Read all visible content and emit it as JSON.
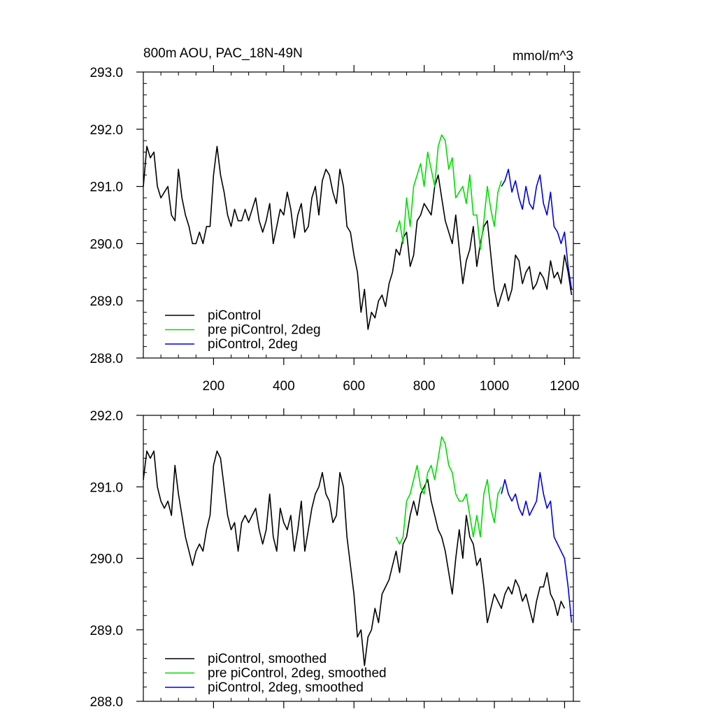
{
  "chart_data": [
    {
      "type": "line",
      "title": "800m AOU, PAC_18N-49N",
      "units": "mmol/m^3",
      "xlim": [
        0,
        1225
      ],
      "ylim": [
        288.0,
        293.0
      ],
      "xticks": [
        200,
        400,
        600,
        800,
        1000,
        1200
      ],
      "xtick_labels": [
        "200",
        "400",
        "600",
        "800",
        "1000",
        "1200"
      ],
      "yticks": [
        288.0,
        289.0,
        290.0,
        291.0,
        292.0,
        293.0
      ],
      "ytick_labels": [
        "288.0",
        "289.0",
        "290.0",
        "291.0",
        "292.0",
        "293.0"
      ],
      "grid": false,
      "legend_position": "bottom-left",
      "series": [
        {
          "name": "piControl",
          "color": "#000000",
          "x": [
            0,
            10,
            20,
            30,
            40,
            50,
            60,
            70,
            80,
            90,
            100,
            110,
            120,
            130,
            140,
            150,
            160,
            170,
            180,
            190,
            200,
            210,
            220,
            230,
            240,
            250,
            260,
            270,
            280,
            290,
            300,
            310,
            320,
            330,
            340,
            350,
            360,
            370,
            380,
            390,
            400,
            410,
            420,
            430,
            440,
            450,
            460,
            470,
            480,
            490,
            500,
            510,
            520,
            530,
            540,
            550,
            560,
            570,
            580,
            590,
            600,
            610,
            620,
            630,
            640,
            650,
            660,
            670,
            680,
            690,
            700,
            710,
            720,
            730,
            740,
            750,
            760,
            770,
            780,
            790,
            800,
            810,
            820,
            830,
            840,
            850,
            860,
            870,
            880,
            890,
            900,
            910,
            920,
            930,
            940,
            950,
            960,
            970,
            980,
            990,
            1000,
            1010,
            1020,
            1030,
            1040,
            1050,
            1060,
            1070,
            1080,
            1090,
            1100,
            1110,
            1120,
            1130,
            1140,
            1150,
            1160,
            1170,
            1180,
            1190,
            1200,
            1210,
            1220
          ],
          "y": [
            291.0,
            291.7,
            291.5,
            291.6,
            291.0,
            290.8,
            290.9,
            291.0,
            290.5,
            290.4,
            291.3,
            290.8,
            290.5,
            290.3,
            290.0,
            290.0,
            290.2,
            290.0,
            290.3,
            290.3,
            291.2,
            291.7,
            291.2,
            290.9,
            290.5,
            290.3,
            290.6,
            290.4,
            290.4,
            290.6,
            290.4,
            290.6,
            290.8,
            290.4,
            290.2,
            290.4,
            290.7,
            290.0,
            290.3,
            290.6,
            290.5,
            290.9,
            290.6,
            290.1,
            290.5,
            290.7,
            290.2,
            290.3,
            290.8,
            291.0,
            290.5,
            291.1,
            291.3,
            291.2,
            290.9,
            290.7,
            291.3,
            291.0,
            290.3,
            290.2,
            289.8,
            289.5,
            288.8,
            289.2,
            288.5,
            288.8,
            288.7,
            289.0,
            289.1,
            288.9,
            289.3,
            289.5,
            289.9,
            289.8,
            290.1,
            290.2,
            289.6,
            289.8,
            290.4,
            290.5,
            290.7,
            290.6,
            290.5,
            291.0,
            291.2,
            290.8,
            290.4,
            290.2,
            290.0,
            290.5,
            289.9,
            289.3,
            289.7,
            289.9,
            290.3,
            289.6,
            290.0,
            290.3,
            290.4,
            289.8,
            289.2,
            288.9,
            289.1,
            289.3,
            289.0,
            289.2,
            289.8,
            289.7,
            289.3,
            289.5,
            289.6,
            289.2,
            289.3,
            289.5,
            289.4,
            289.2,
            289.7,
            289.4,
            289.5,
            289.3,
            289.8,
            289.5,
            289.1
          ]
        },
        {
          "name": "pre piControl, 2deg",
          "color": "#00dd00",
          "x": [
            720,
            730,
            740,
            750,
            760,
            770,
            780,
            790,
            800,
            810,
            820,
            830,
            840,
            850,
            860,
            870,
            880,
            890,
            900,
            910,
            920,
            930,
            940,
            950,
            960,
            970,
            980,
            990,
            1000,
            1010,
            1020
          ],
          "y": [
            290.2,
            290.4,
            290.0,
            290.8,
            290.3,
            291.0,
            291.2,
            291.4,
            291.0,
            291.6,
            291.3,
            291.0,
            291.7,
            291.9,
            291.8,
            291.3,
            291.5,
            290.8,
            290.9,
            291.0,
            290.7,
            291.2,
            290.5,
            290.5,
            289.9,
            290.4,
            291.0,
            290.6,
            290.3,
            290.9,
            291.1
          ]
        },
        {
          "name": "piControl, 2deg",
          "color": "#0000dd",
          "x": [
            1020,
            1030,
            1040,
            1050,
            1060,
            1070,
            1080,
            1090,
            1100,
            1110,
            1120,
            1130,
            1140,
            1150,
            1160,
            1170,
            1180,
            1190,
            1200,
            1210,
            1220
          ],
          "y": [
            291.0,
            291.1,
            291.3,
            290.9,
            291.1,
            290.8,
            290.6,
            291.0,
            290.7,
            290.6,
            291.0,
            291.2,
            290.7,
            290.5,
            290.9,
            290.3,
            290.2,
            290.0,
            290.2,
            289.6,
            289.2
          ]
        }
      ]
    },
    {
      "type": "line",
      "title": "",
      "xlim": [
        0,
        1225
      ],
      "ylim": [
        288.0,
        292.0
      ],
      "yticks": [
        288.0,
        289.0,
        290.0,
        291.0,
        292.0
      ],
      "ytick_labels": [
        "288.0",
        "289.0",
        "290.0",
        "291.0",
        "292.0"
      ],
      "xticks": [
        200,
        400,
        600,
        800,
        1000,
        1200
      ],
      "grid": false,
      "legend_position": "bottom-left",
      "series": [
        {
          "name": "piControl, smoothed",
          "color": "#000000",
          "x": [
            0,
            10,
            20,
            30,
            40,
            50,
            60,
            70,
            80,
            90,
            100,
            110,
            120,
            130,
            140,
            150,
            160,
            170,
            180,
            190,
            200,
            210,
            220,
            230,
            240,
            250,
            260,
            270,
            280,
            290,
            300,
            310,
            320,
            330,
            340,
            350,
            360,
            370,
            380,
            390,
            400,
            410,
            420,
            430,
            440,
            450,
            460,
            470,
            480,
            490,
            500,
            510,
            520,
            530,
            540,
            550,
            560,
            570,
            580,
            590,
            600,
            610,
            620,
            630,
            640,
            650,
            660,
            670,
            680,
            690,
            700,
            710,
            720,
            730,
            740,
            750,
            760,
            770,
            780,
            790,
            800,
            810,
            820,
            830,
            840,
            850,
            860,
            870,
            880,
            890,
            900,
            910,
            920,
            930,
            940,
            950,
            960,
            970,
            980,
            990,
            1000,
            1010,
            1020,
            1030,
            1040,
            1050,
            1060,
            1070,
            1080,
            1090,
            1100,
            1110,
            1120,
            1130,
            1140,
            1150,
            1160,
            1170,
            1180,
            1190,
            1200
          ],
          "y": [
            291.1,
            291.5,
            291.4,
            291.5,
            291.0,
            290.8,
            290.7,
            290.8,
            290.6,
            291.3,
            290.9,
            290.6,
            290.3,
            290.1,
            289.9,
            290.1,
            290.2,
            290.1,
            290.4,
            290.6,
            291.3,
            291.5,
            291.4,
            291.0,
            290.6,
            290.4,
            290.5,
            290.1,
            290.5,
            290.6,
            290.5,
            290.6,
            290.7,
            290.4,
            290.2,
            290.4,
            290.9,
            290.3,
            290.1,
            290.7,
            290.5,
            290.4,
            290.6,
            290.1,
            290.4,
            290.8,
            290.1,
            290.4,
            290.7,
            290.9,
            291.0,
            291.2,
            290.9,
            290.8,
            290.5,
            290.6,
            291.2,
            291.0,
            290.3,
            289.9,
            289.5,
            288.9,
            289.0,
            288.5,
            288.9,
            289.0,
            289.3,
            289.1,
            289.5,
            289.6,
            289.7,
            289.9,
            290.1,
            289.8,
            290.2,
            290.3,
            290.6,
            290.8,
            290.6,
            290.9,
            291.0,
            291.1,
            290.8,
            290.6,
            290.4,
            290.3,
            290.1,
            289.8,
            289.5,
            290.0,
            290.4,
            290.0,
            290.6,
            290.3,
            290.2,
            289.9,
            290.0,
            289.6,
            289.1,
            289.3,
            289.5,
            289.4,
            289.3,
            289.5,
            289.6,
            289.5,
            289.7,
            289.6,
            289.4,
            289.5,
            289.3,
            289.1,
            289.4,
            289.6,
            289.6,
            289.8,
            289.5,
            289.4,
            289.2,
            289.4,
            289.3
          ]
        },
        {
          "name": "pre piControl, 2deg, smoothed",
          "color": "#00dd00",
          "x": [
            720,
            730,
            740,
            750,
            760,
            770,
            780,
            790,
            800,
            810,
            820,
            830,
            840,
            850,
            860,
            870,
            880,
            890,
            900,
            910,
            920,
            930,
            940,
            950,
            960,
            970,
            980,
            990,
            1000,
            1010,
            1020
          ],
          "y": [
            290.3,
            290.2,
            290.3,
            290.8,
            290.9,
            291.1,
            291.3,
            291.0,
            290.9,
            291.2,
            291.3,
            291.1,
            291.4,
            291.7,
            291.6,
            291.3,
            291.2,
            290.9,
            290.8,
            290.8,
            290.9,
            290.6,
            290.3,
            290.6,
            290.3,
            290.9,
            291.1,
            290.7,
            290.5,
            290.9,
            291.0
          ]
        },
        {
          "name": "piControl, 2deg, smoothed",
          "color": "#0000dd",
          "x": [
            1020,
            1030,
            1040,
            1050,
            1060,
            1070,
            1080,
            1090,
            1100,
            1110,
            1120,
            1130,
            1140,
            1150,
            1160,
            1170,
            1180,
            1190,
            1200,
            1210,
            1220
          ],
          "y": [
            290.9,
            291.1,
            290.9,
            290.8,
            290.9,
            290.7,
            290.6,
            290.8,
            290.6,
            290.7,
            290.8,
            291.2,
            290.9,
            290.7,
            290.8,
            290.3,
            290.2,
            290.1,
            290.0,
            289.6,
            289.1
          ]
        }
      ]
    }
  ]
}
